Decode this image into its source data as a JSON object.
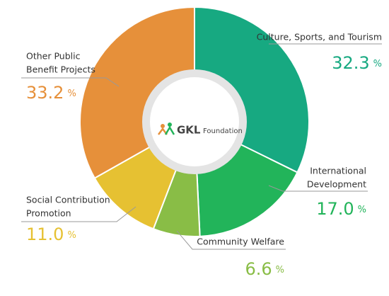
{
  "chart_data": {
    "type": "donut",
    "categories": [
      [
        "Culture, Sports, and Tourism"
      ],
      [
        "International",
        "Development"
      ],
      [
        "Community Welfare"
      ],
      [
        "Social Contribution",
        "Promotion"
      ],
      [
        "Other Public",
        "Benefit Projects"
      ]
    ],
    "values": [
      32.3,
      17.0,
      6.6,
      11.0,
      33.2
    ],
    "value_labels": [
      "32.3",
      "17.0",
      "6.6",
      "11.0",
      "33.2"
    ],
    "value_suffix": "%",
    "colors": [
      "#17a981",
      "#22b45a",
      "#89bd46",
      "#e6c132",
      "#e6903a"
    ],
    "center_logo": {
      "brand": "GKL",
      "sub": "Foundation"
    }
  }
}
